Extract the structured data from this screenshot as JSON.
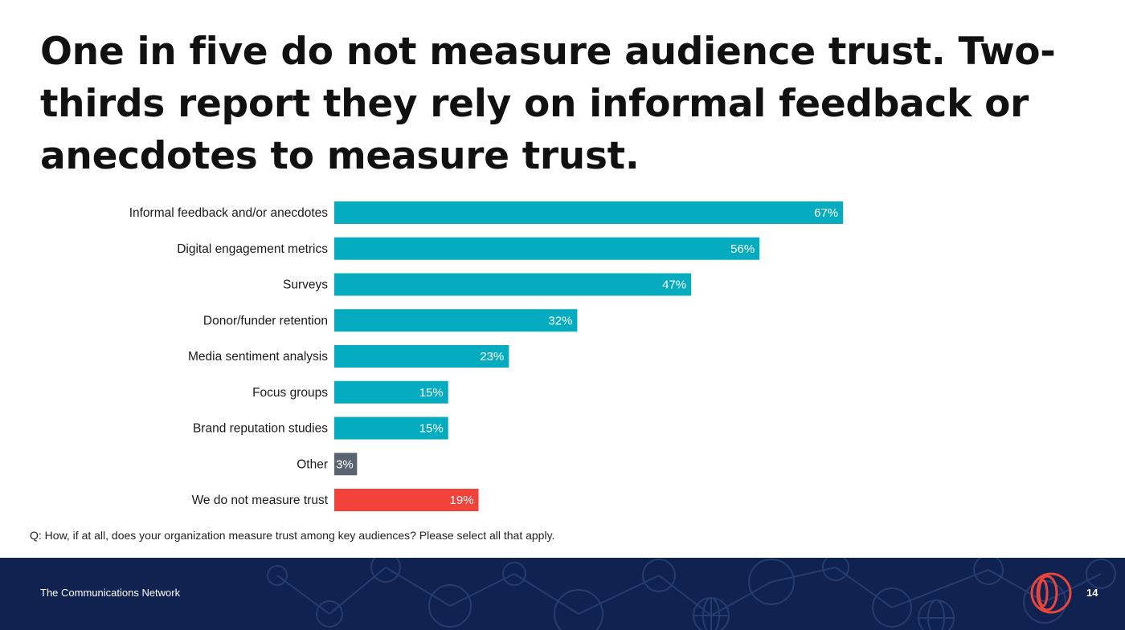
{
  "slide": {
    "title": "One in five do not measure audience trust. Two-thirds report they rely on informal feedback or anecdotes to measure trust.",
    "question": "Q: How, if at all, does your organization measure trust among key audiences? Please select all that apply."
  },
  "footer": {
    "org_name": "The Communications Network",
    "page_number": "14",
    "logo_icon": "communications-network-logo-icon"
  },
  "colors": {
    "primary_bar": "#05acbf",
    "other_bar": "#5a6470",
    "no_measure_bar": "#f2433a",
    "footer_bg": "#0f2250",
    "logo": "#e8453c"
  },
  "chart_data": {
    "type": "bar",
    "orientation": "horizontal",
    "categories": [
      "Informal feedback and/or anecdotes",
      "Digital engagement metrics",
      "Surveys",
      "Donor/funder retention",
      "Media sentiment analysis",
      "Focus groups",
      "Brand reputation studies",
      "Other",
      "We do not measure trust"
    ],
    "values": [
      67,
      56,
      47,
      32,
      23,
      15,
      15,
      3,
      19
    ],
    "value_labels": [
      "67%",
      "56%",
      "47%",
      "32%",
      "23%",
      "15%",
      "15%",
      "3%",
      "19%"
    ],
    "bar_colors": [
      "#05acbf",
      "#05acbf",
      "#05acbf",
      "#05acbf",
      "#05acbf",
      "#05acbf",
      "#05acbf",
      "#5a6470",
      "#f2433a"
    ],
    "unit": "%",
    "xlim": [
      0,
      100
    ],
    "axis_visible": false,
    "grid": false,
    "legend": "none"
  }
}
